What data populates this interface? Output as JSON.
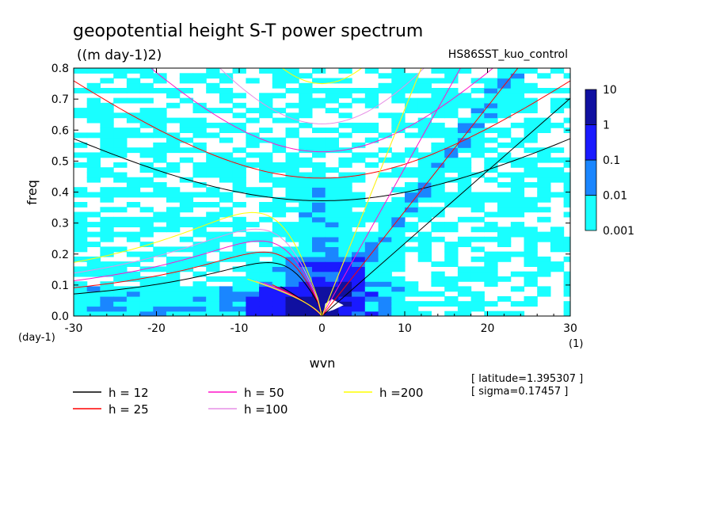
{
  "chart_data": {
    "type": "heatmap",
    "title": "geopotential height S-T power spectrum",
    "units": "((m day-1)2)",
    "run_label": "HS86SST_kuo_control",
    "xlabel": "wvn",
    "ylabel": "freq",
    "x_unit_label": "(1)",
    "y_unit_label": "(day-1)",
    "xlim": [
      -30,
      30
    ],
    "ylim": [
      0,
      0.8
    ],
    "x_ticks": [
      -30,
      -20,
      -10,
      0,
      10,
      20,
      30
    ],
    "y_ticks": [
      0.0,
      0.1,
      0.2,
      0.3,
      0.4,
      0.5,
      0.6,
      0.7,
      0.8
    ],
    "x_tick_labels": [
      "-30",
      "-20",
      "-10",
      "0",
      "10",
      "20",
      "30"
    ],
    "y_tick_labels": [
      "0.0",
      "0.1",
      "0.2",
      "0.3",
      "0.4",
      "0.5",
      "0.6",
      "0.7",
      "0.8"
    ],
    "colorbar": {
      "levels": [
        0.001,
        0.01,
        0.1,
        1,
        10
      ],
      "labels": [
        "0.001",
        "0.01",
        "0.1",
        "1",
        "10"
      ],
      "colors": [
        "#19ffff",
        "#1a86ff",
        "#1a1aff",
        "#1010a0",
        "#5a14c0"
      ]
    },
    "dispersion_curves": [
      {
        "label": "h = 12",
        "h": 12,
        "color": "#000000"
      },
      {
        "label": "h = 25",
        "h": 25,
        "color": "#ff0000"
      },
      {
        "label": "h = 50",
        "h": 50,
        "color": "#ff14c8"
      },
      {
        "label": "h =100",
        "h": 100,
        "color": "#e690e6"
      },
      {
        "label": "h =200",
        "h": 200,
        "color": "#ffff00"
      }
    ],
    "annotations": {
      "latitude": "[ latitude=1.395307 ]",
      "sigma": "[ sigma=0.17457 ]"
    }
  }
}
